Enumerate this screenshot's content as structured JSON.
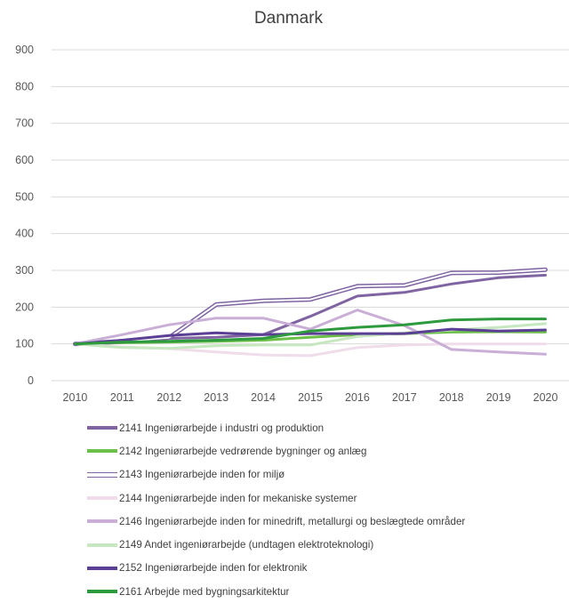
{
  "chart_data": {
    "type": "line",
    "title": "Danmark",
    "xlabel": "",
    "ylabel": "",
    "x": [
      "2010",
      "2011",
      "2012",
      "2013",
      "2014",
      "2015",
      "2016",
      "2017",
      "2018",
      "2019",
      "2020"
    ],
    "ylim": [
      0,
      900
    ],
    "yticks": [
      "0",
      "100",
      "200",
      "300",
      "400",
      "500",
      "600",
      "700",
      "800",
      "900"
    ],
    "grid": true,
    "legend_position": "bottom",
    "series": [
      {
        "name": "2141 Ingeniørarbejde i industri og produktion",
        "color": "#8064a2",
        "style": "solid",
        "width": 3,
        "values": [
          100,
          108,
          115,
          118,
          125,
          175,
          230,
          240,
          263,
          280,
          287
        ]
      },
      {
        "name": "2142 Ingeniørarbejde vedrørende bygninger og anlæg",
        "color": "#6cc04a",
        "style": "solid",
        "width": 3,
        "values": [
          100,
          103,
          105,
          107,
          110,
          118,
          125,
          128,
          132,
          133,
          132
        ]
      },
      {
        "name": "2143 Ingeniørarbejde inden for miljø",
        "color": "#8064a2",
        "style": "double",
        "width": 2,
        "values": [
          100,
          107,
          117,
          207,
          217,
          221,
          257,
          259,
          293,
          294,
          302
        ]
      },
      {
        "name": "2144 Ingeniørarbejde inden for mekaniske systemer",
        "color": "#f0dcea",
        "style": "solid",
        "width": 3,
        "values": [
          100,
          92,
          87,
          78,
          70,
          68,
          90,
          97,
          100,
          100,
          100
        ]
      },
      {
        "name": "2146 Ingeniørarbejde inden for minedrift, metallurgi og beslægtede områder",
        "color": "#c9aed6",
        "style": "solid",
        "width": 3,
        "values": [
          100,
          125,
          152,
          170,
          170,
          140,
          192,
          150,
          85,
          78,
          72
        ]
      },
      {
        "name": "2149 Andet ingeniørarbejde (undtagen elektroteknologi)",
        "color": "#c6e7bf",
        "style": "solid",
        "width": 3,
        "values": [
          100,
          90,
          88,
          95,
          97,
          97,
          120,
          130,
          138,
          145,
          155
        ]
      },
      {
        "name": "2152 Ingeniørarbejde inden for elektronik",
        "color": "#5b3f95",
        "style": "solid",
        "width": 3,
        "values": [
          100,
          110,
          123,
          130,
          125,
          128,
          128,
          128,
          140,
          135,
          138
        ]
      },
      {
        "name": "2161 Arbejde med bygningsarkitektur",
        "color": "#2e9a3e",
        "style": "solid",
        "width": 3,
        "values": [
          100,
          105,
          107,
          110,
          115,
          135,
          145,
          152,
          165,
          168,
          168
        ]
      }
    ]
  }
}
